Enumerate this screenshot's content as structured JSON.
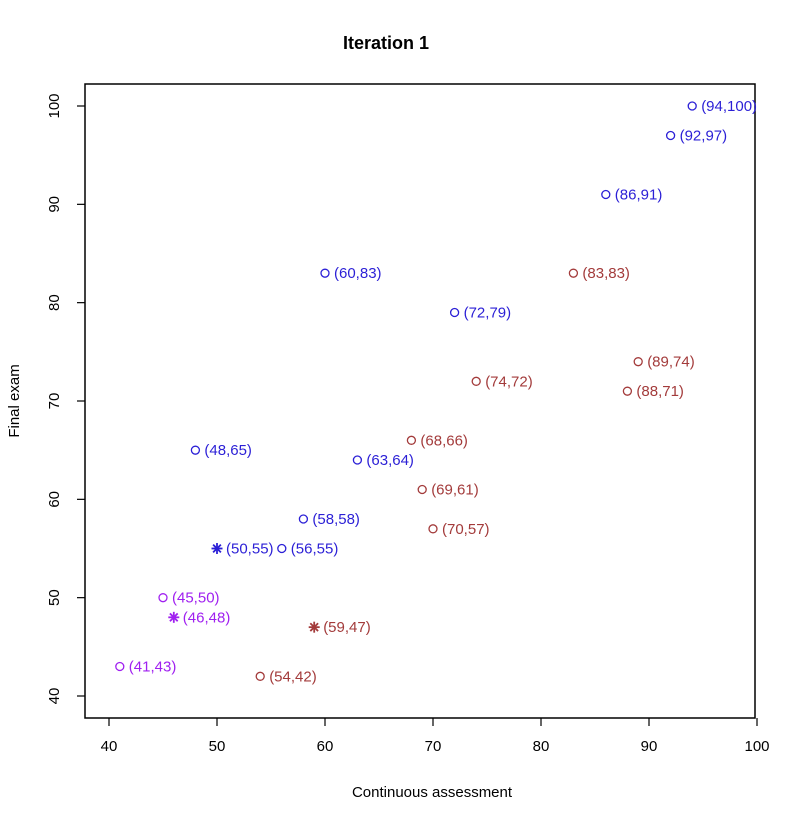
{
  "chart_data": {
    "type": "scatter",
    "title": "Iteration 1",
    "xlabel": "Continuous assessment",
    "ylabel": "Final exam",
    "xlim": [
      40,
      100
    ],
    "ylim": [
      40,
      100
    ],
    "xticks": [
      40,
      50,
      60,
      70,
      80,
      90,
      100
    ],
    "yticks": [
      40,
      50,
      60,
      70,
      80,
      90,
      100
    ],
    "grid": false,
    "legend": "none",
    "colors": {
      "blue": "#2b1fd6",
      "brown": "#a33b3b",
      "purple": "#a020f0"
    },
    "points": [
      {
        "x": 94,
        "y": 100,
        "label": "(94,100)",
        "cluster": "blue",
        "marker": "circle"
      },
      {
        "x": 92,
        "y": 97,
        "label": "(92,97)",
        "cluster": "blue",
        "marker": "circle"
      },
      {
        "x": 86,
        "y": 91,
        "label": "(86,91)",
        "cluster": "blue",
        "marker": "circle"
      },
      {
        "x": 60,
        "y": 83,
        "label": "(60,83)",
        "cluster": "blue",
        "marker": "circle"
      },
      {
        "x": 72,
        "y": 79,
        "label": "(72,79)",
        "cluster": "blue",
        "marker": "circle"
      },
      {
        "x": 48,
        "y": 65,
        "label": "(48,65)",
        "cluster": "blue",
        "marker": "circle"
      },
      {
        "x": 63,
        "y": 64,
        "label": "(63,64)",
        "cluster": "blue",
        "marker": "circle"
      },
      {
        "x": 58,
        "y": 58,
        "label": "(58,58)",
        "cluster": "blue",
        "marker": "circle"
      },
      {
        "x": 56,
        "y": 55,
        "label": "(56,55)",
        "cluster": "blue",
        "marker": "circle"
      },
      {
        "x": 50,
        "y": 55,
        "label": "(50,55)",
        "cluster": "blue",
        "marker": "star"
      },
      {
        "x": 83,
        "y": 83,
        "label": "(83,83)",
        "cluster": "brown",
        "marker": "circle"
      },
      {
        "x": 89,
        "y": 74,
        "label": "(89,74)",
        "cluster": "brown",
        "marker": "circle"
      },
      {
        "x": 74,
        "y": 72,
        "label": "(74,72)",
        "cluster": "brown",
        "marker": "circle"
      },
      {
        "x": 88,
        "y": 71,
        "label": "(88,71)",
        "cluster": "brown",
        "marker": "circle"
      },
      {
        "x": 68,
        "y": 66,
        "label": "(68,66)",
        "cluster": "brown",
        "marker": "circle"
      },
      {
        "x": 69,
        "y": 61,
        "label": "(69,61)",
        "cluster": "brown",
        "marker": "circle"
      },
      {
        "x": 70,
        "y": 57,
        "label": "(70,57)",
        "cluster": "brown",
        "marker": "circle"
      },
      {
        "x": 54,
        "y": 42,
        "label": "(54,42)",
        "cluster": "brown",
        "marker": "circle"
      },
      {
        "x": 59,
        "y": 47,
        "label": "(59,47)",
        "cluster": "brown",
        "marker": "star"
      },
      {
        "x": 45,
        "y": 50,
        "label": "(45,50)",
        "cluster": "purple",
        "marker": "circle"
      },
      {
        "x": 41,
        "y": 43,
        "label": "(41,43)",
        "cluster": "purple",
        "marker": "circle"
      },
      {
        "x": 46,
        "y": 48,
        "label": "(46,48)",
        "cluster": "purple",
        "marker": "star"
      }
    ]
  }
}
